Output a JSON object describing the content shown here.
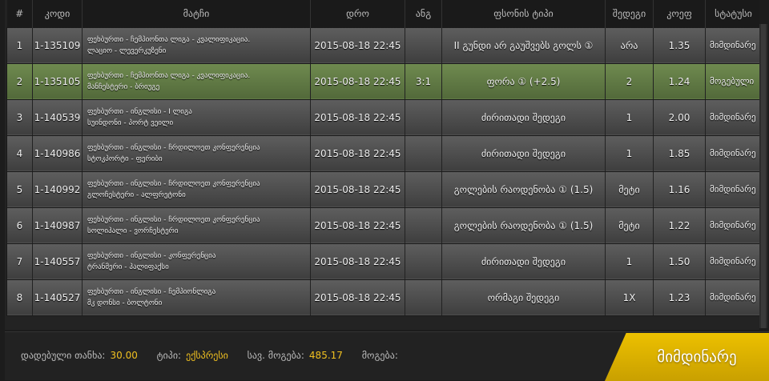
{
  "columns": [
    "#",
    "კოდი",
    "მატჩი",
    "დრო",
    "ანგ",
    "ფსონის ტიპი",
    "შედეგი",
    "კოეფ",
    "სტატუსი"
  ],
  "rows": [
    {
      "n": "1",
      "code": "1-135109",
      "league": "ფეხბურთი - ჩემპიონთა ლიგა - კვალიფიკაცია.",
      "teams": "ლაციო - ლევერკუზენი",
      "date": "2015-08-18 22:45",
      "score": "",
      "type": "II გუნდი არ გაუშვებს გოლს ①",
      "result": "არა",
      "coef": "1.35",
      "status": "მიმდინარე"
    },
    {
      "n": "2",
      "code": "1-135105",
      "league": "ფეხბურთი - ჩემპიონთა ლიგა - კვალიფიკაცია.",
      "teams": "მანჩესტერი - ბრიუგე",
      "date": "2015-08-18 22:45",
      "score": "3:1",
      "type": "ფორა ① (+2.5)",
      "result": "2",
      "coef": "1.24",
      "status": "მოგებული"
    },
    {
      "n": "3",
      "code": "1-140539",
      "league": "ფეხბურთი - ინგლისი - I ლიგა",
      "teams": "სუინდონი - პორტ ვეილი",
      "date": "2015-08-18 22:45",
      "score": "",
      "type": "ძირითადი შედეგი",
      "result": "1",
      "coef": "2.00",
      "status": "მიმდინარე"
    },
    {
      "n": "4",
      "code": "1-140986",
      "league": "ფეხბურთი - ინგლისი - ჩრდილოეთ კონფერენცია",
      "teams": "სტოკპორტი - ფერიბი",
      "date": "2015-08-18 22:45",
      "score": "",
      "type": "ძირითადი შედეგი",
      "result": "1",
      "coef": "1.85",
      "status": "მიმდინარე"
    },
    {
      "n": "5",
      "code": "1-140992",
      "league": "ფეხბურთი - ინგლისი - ჩრდილოეთ კონფერენცია",
      "teams": "გლოჩესტერი - ალფრეტონი",
      "date": "2015-08-18 22:45",
      "score": "",
      "type": "გოლების რაოდენობა ① (1.5)",
      "result": "მეტი",
      "coef": "1.16",
      "status": "მიმდინარე"
    },
    {
      "n": "6",
      "code": "1-140987",
      "league": "ფეხბურთი - ინგლისი - ჩრდილოეთ კონფერენცია",
      "teams": "სოლიჰალი - ვორჩესტერი",
      "date": "2015-08-18 22:45",
      "score": "",
      "type": "გოლების რაოდენობა ① (1.5)",
      "result": "მეტი",
      "coef": "1.22",
      "status": "მიმდინარე"
    },
    {
      "n": "7",
      "code": "1-140557",
      "league": "ფეხბურთი - ინგლისი - კონფერენცია",
      "teams": "ტრანმერი - ჰალიფაქსი",
      "date": "2015-08-18 22:45",
      "score": "",
      "type": "ძირითადი შედეგი",
      "result": "1",
      "coef": "1.50",
      "status": "მიმდინარე"
    },
    {
      "n": "8",
      "code": "1-140527",
      "league": "ფეხბურთი - ინგლისი - ჩემპიონლიგა",
      "teams": "მკ დონსი - ბოლტონი",
      "date": "2015-08-18 22:45",
      "score": "",
      "type": "ორმაგი შედეგი",
      "result": "1X",
      "coef": "1.23",
      "status": "მიმდინარე"
    }
  ],
  "highlight_row": 2,
  "footer": {
    "stake_label": "დადებული თანხა:",
    "stake": "30.00",
    "type_label": "ტიპი:",
    "type": "ექსპრესი",
    "potential_label": "სავ. მოგება:",
    "potential": "485.17",
    "win_label": "მოგება:",
    "win": "",
    "button": "მიმდინარე"
  },
  "colors": {
    "accent": "#e8bc00",
    "win_row": "#627c45",
    "value": "#f0c020"
  }
}
